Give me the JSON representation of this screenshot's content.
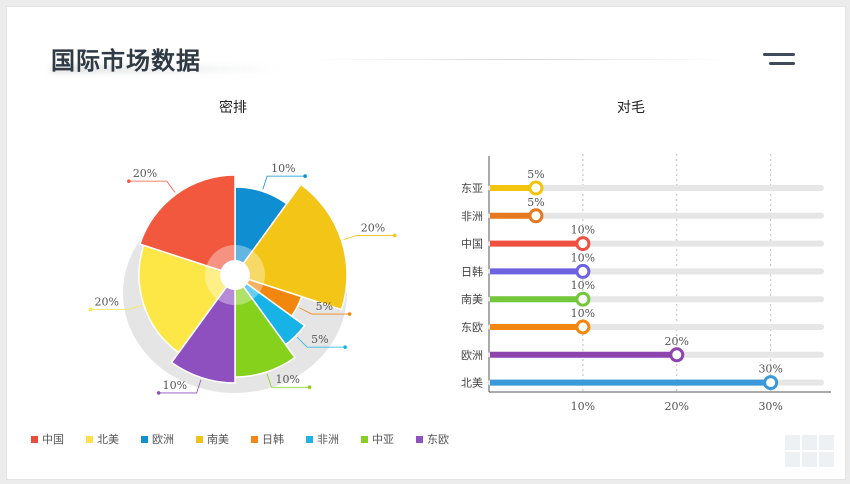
{
  "page": {
    "title": "国际市场数据"
  },
  "chart_data": [
    {
      "type": "pie",
      "title": "密排",
      "categories": [
        "中国",
        "北美",
        "欧洲",
        "南美",
        "日韩",
        "非洲",
        "中亚",
        "东欧"
      ],
      "values": [
        20,
        20,
        10,
        20,
        5,
        5,
        10,
        10
      ],
      "slices_clockwise_from_top": [
        {
          "name": "欧洲",
          "value": 10,
          "label": "10%",
          "color": "#0f8fd1"
        },
        {
          "name": "南美",
          "value": 20,
          "label": "20%",
          "color": "#f2c516"
        },
        {
          "name": "日韩",
          "value": 5,
          "label": "5%",
          "color": "#f2870f"
        },
        {
          "name": "非洲",
          "value": 5,
          "label": "5%",
          "color": "#18b3e6"
        },
        {
          "name": "中亚",
          "value": 10,
          "label": "10%",
          "color": "#86d11b"
        },
        {
          "name": "东欧",
          "value": 10,
          "label": "10%",
          "color": "#8e4fbf"
        },
        {
          "name": "北美",
          "value": 20,
          "label": "20%",
          "color": "#fde746"
        },
        {
          "name": "中国",
          "value": 20,
          "label": "20%",
          "color": "#f2583e"
        }
      ],
      "legend": [
        {
          "name": "中国",
          "color": "#e94e3c"
        },
        {
          "name": "北美",
          "color": "#fbe24a"
        },
        {
          "name": "欧洲",
          "color": "#1090cf"
        },
        {
          "name": "南美",
          "color": "#f1c31a"
        },
        {
          "name": "日韩",
          "color": "#f1871a"
        },
        {
          "name": "非洲",
          "color": "#1fb2e4"
        },
        {
          "name": "中亚",
          "color": "#86cf22"
        },
        {
          "name": "东欧",
          "color": "#8e52c0"
        }
      ],
      "legend_position": "bottom-left"
    },
    {
      "type": "bar",
      "orientation": "horizontal",
      "title": "对毛",
      "categories": [
        "东亚",
        "非洲",
        "中国",
        "日韩",
        "南美",
        "东欧",
        "欧洲",
        "北美"
      ],
      "values": [
        5,
        5,
        10,
        10,
        10,
        10,
        20,
        30
      ],
      "value_labels": [
        "5%",
        "5%",
        "10%",
        "10%",
        "10%",
        "10%",
        "20%",
        "30%"
      ],
      "colors": [
        "#f2c30f",
        "#e6791f",
        "#f0503f",
        "#6d63e0",
        "#74c63b",
        "#f2870f",
        "#8e44ad",
        "#3a9ad9"
      ],
      "x_ticks": [
        "10%",
        "20%",
        "30%"
      ],
      "x_tick_values": [
        10,
        20,
        30
      ],
      "xlim": [
        0,
        36
      ],
      "grid": "vertical-dashed"
    }
  ]
}
